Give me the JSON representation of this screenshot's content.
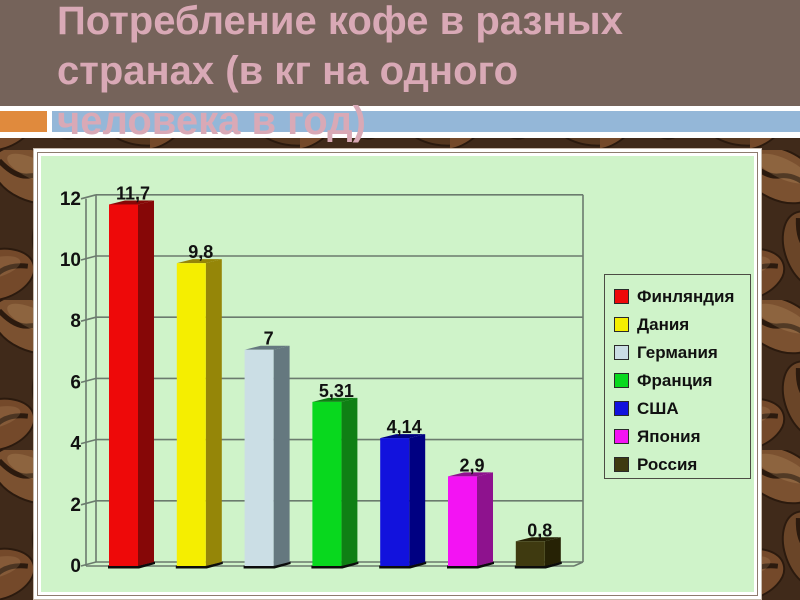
{
  "slide": {
    "title_lines": [
      "Потребление кофе в разных",
      "странах (в кг на одного",
      "человека в год)"
    ],
    "colors": {
      "header_bg": "#75635a",
      "title_text": "#d9a9b6",
      "accent_orange": "#e08a3d",
      "accent_blue": "#94b7d8"
    }
  },
  "chart_data": {
    "type": "bar",
    "style": "3d-column",
    "title": "",
    "xlabel": "",
    "ylabel": "",
    "categories": [
      "Финляндия",
      "Дания",
      "Германия",
      "Франция",
      "США",
      "Япония",
      "Россия"
    ],
    "values": [
      11.7,
      9.8,
      7,
      5.31,
      4.14,
      2.9,
      0.8
    ],
    "value_labels": [
      "11,7",
      "9,8",
      "7",
      "5,31",
      "4,14",
      "2,9",
      "0,8"
    ],
    "y_ticks": [
      0,
      2,
      4,
      6,
      8,
      10,
      12
    ],
    "y_tick_labels": [
      "0",
      "2",
      "4",
      "6",
      "8",
      "10",
      "12"
    ],
    "ylim": [
      0,
      12
    ],
    "grid": true,
    "legend_position": "right",
    "plot_bg": "#cff3c9",
    "grid_color": "#6b7b6e",
    "bar_colors": [
      "#ee0909",
      "#f5ee00",
      "#cbdee5",
      "#08d81e",
      "#1212dd",
      "#f313f3",
      "#3f3a10"
    ],
    "bar_side_colors": [
      "#860707",
      "#958608",
      "#65787f",
      "#0f7f14",
      "#000082",
      "#8e128e",
      "#262205"
    ]
  }
}
